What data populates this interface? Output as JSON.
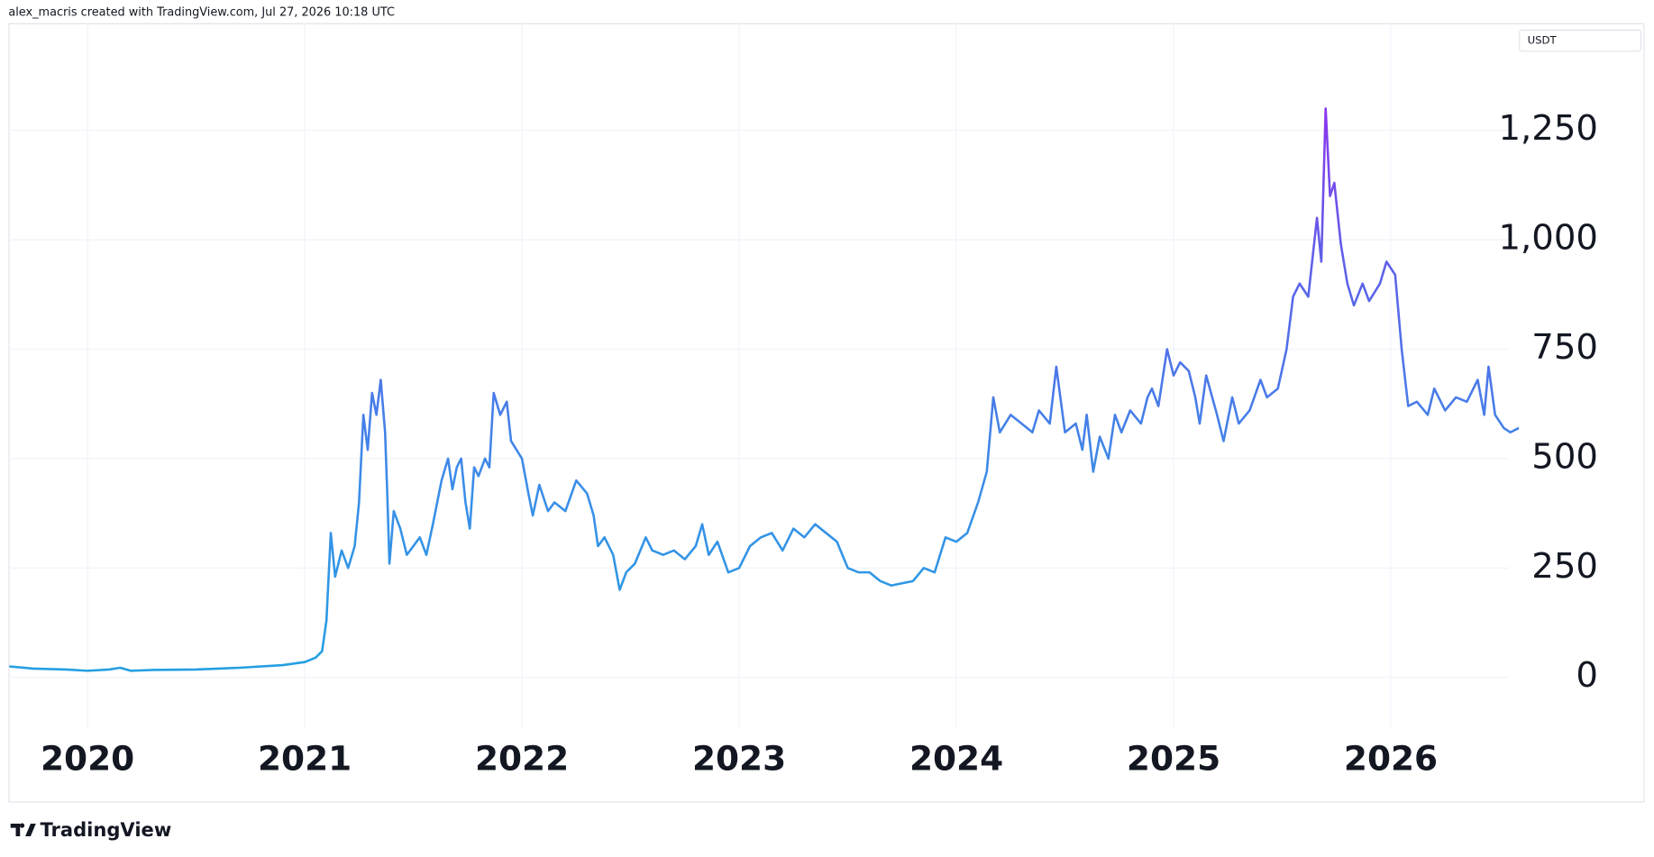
{
  "header": "alex_macris created with TradingView.com, Jul 27, 2026 10:18 UTC",
  "brand": "TradingView",
  "chart_data": {
    "type": "line",
    "currency": "USDT",
    "gradient": [
      "#1da5df",
      "#3a8ee8",
      "#5f5fe8",
      "#a31ff0"
    ],
    "grid": true,
    "xlim": [
      2019.636,
      2026.59
    ],
    "ylim": [
      -115,
      1495
    ],
    "xticks": [
      2020,
      2021,
      2022,
      2023,
      2024,
      2025,
      2026
    ],
    "yticks": [
      0,
      250,
      500,
      750,
      {
        "value": 1000,
        "label": "1,000"
      },
      {
        "value": 1250,
        "label": "1,250"
      }
    ],
    "x": [
      2019.64,
      2019.75,
      2019.9,
      2020.0,
      2020.1,
      2020.15,
      2020.2,
      2020.3,
      2020.5,
      2020.7,
      2020.9,
      2021.0,
      2021.05,
      2021.08,
      2021.1,
      2021.12,
      2021.14,
      2021.17,
      2021.2,
      2021.23,
      2021.25,
      2021.27,
      2021.29,
      2021.31,
      2021.33,
      2021.35,
      2021.37,
      2021.38,
      2021.39,
      2021.41,
      2021.44,
      2021.47,
      2021.5,
      2021.53,
      2021.56,
      2021.59,
      2021.63,
      2021.66,
      2021.68,
      2021.7,
      2021.72,
      2021.74,
      2021.76,
      2021.78,
      2021.8,
      2021.83,
      2021.85,
      2021.87,
      2021.9,
      2021.93,
      2021.95,
      2022.0,
      2022.03,
      2022.05,
      2022.08,
      2022.12,
      2022.15,
      2022.2,
      2022.25,
      2022.3,
      2022.33,
      2022.35,
      2022.38,
      2022.42,
      2022.45,
      2022.48,
      2022.52,
      2022.57,
      2022.6,
      2022.65,
      2022.7,
      2022.75,
      2022.8,
      2022.83,
      2022.86,
      2022.9,
      2022.95,
      2023.0,
      2023.05,
      2023.1,
      2023.15,
      2023.2,
      2023.25,
      2023.3,
      2023.35,
      2023.4,
      2023.45,
      2023.5,
      2023.55,
      2023.6,
      2023.65,
      2023.7,
      2023.75,
      2023.8,
      2023.85,
      2023.9,
      2023.95,
      2024.0,
      2024.05,
      2024.1,
      2024.14,
      2024.17,
      2024.2,
      2024.25,
      2024.3,
      2024.35,
      2024.38,
      2024.43,
      2024.46,
      2024.5,
      2024.55,
      2024.58,
      2024.6,
      2024.63,
      2024.66,
      2024.7,
      2024.73,
      2024.76,
      2024.8,
      2024.85,
      2024.88,
      2024.9,
      2024.93,
      2024.97,
      2025.0,
      2025.03,
      2025.07,
      2025.1,
      2025.12,
      2025.15,
      2025.2,
      2025.23,
      2025.27,
      2025.3,
      2025.35,
      2025.4,
      2025.43,
      2025.48,
      2025.52,
      2025.55,
      2025.58,
      2025.62,
      2025.66,
      2025.68,
      2025.7,
      2025.72,
      2025.74,
      2025.77,
      2025.8,
      2025.83,
      2025.87,
      2025.9,
      2025.95,
      2025.98,
      2026.02,
      2026.05,
      2026.08,
      2026.12,
      2026.17,
      2026.2,
      2026.25,
      2026.3,
      2026.35,
      2026.4,
      2026.43,
      2026.45,
      2026.48,
      2026.52,
      2026.55,
      2026.59
    ],
    "values": [
      25,
      20,
      18,
      15,
      18,
      22,
      15,
      17,
      18,
      22,
      28,
      35,
      45,
      60,
      130,
      330,
      230,
      290,
      250,
      300,
      400,
      600,
      520,
      650,
      600,
      680,
      560,
      420,
      260,
      380,
      340,
      280,
      300,
      320,
      280,
      350,
      450,
      500,
      430,
      480,
      500,
      400,
      340,
      480,
      460,
      500,
      480,
      650,
      600,
      630,
      540,
      500,
      420,
      370,
      440,
      380,
      400,
      380,
      450,
      420,
      370,
      300,
      320,
      280,
      200,
      240,
      260,
      320,
      290,
      280,
      290,
      270,
      300,
      350,
      280,
      310,
      240,
      250,
      300,
      320,
      330,
      290,
      340,
      320,
      350,
      330,
      310,
      250,
      240,
      240,
      220,
      210,
      215,
      220,
      250,
      240,
      320,
      310,
      330,
      400,
      470,
      640,
      560,
      600,
      580,
      560,
      610,
      580,
      710,
      560,
      580,
      520,
      600,
      470,
      550,
      500,
      600,
      560,
      610,
      580,
      640,
      660,
      620,
      750,
      690,
      720,
      700,
      640,
      580,
      690,
      600,
      540,
      640,
      580,
      610,
      680,
      640,
      660,
      750,
      870,
      900,
      870,
      1050,
      950,
      1300,
      1100,
      1130,
      990,
      900,
      850,
      900,
      860,
      900,
      950,
      920,
      750,
      620,
      630,
      600,
      660,
      610,
      640,
      630,
      680,
      600,
      710,
      600,
      570,
      560,
      570
    ]
  }
}
